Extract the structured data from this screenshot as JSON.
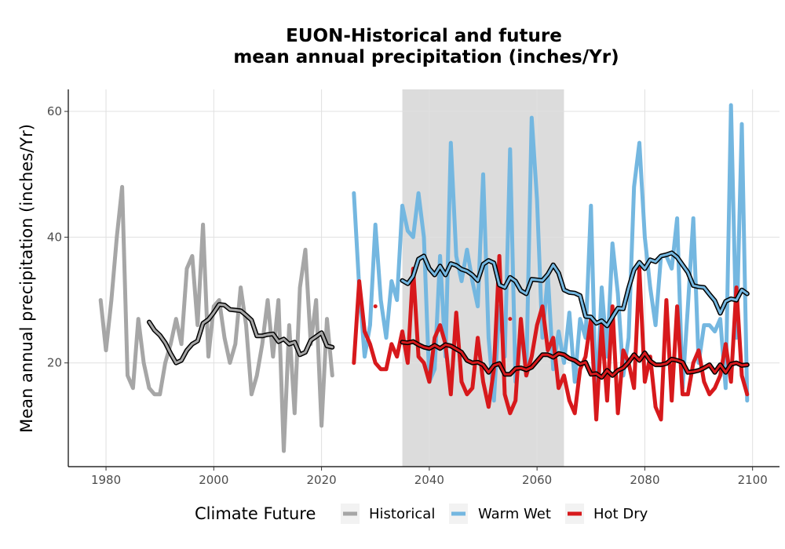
{
  "chart_data": {
    "type": "line",
    "title_line1": "EUON-Historical and future",
    "title_line2": "mean annual precipitation (inches/Yr)",
    "xlabel": "",
    "ylabel": "Mean annual precipitation (inches/Yr)",
    "xlim": [
      1973,
      2105
    ],
    "ylim": [
      3.5,
      63.5
    ],
    "x_ticks": [
      1980,
      2000,
      2020,
      2040,
      2060,
      2080,
      2100
    ],
    "y_ticks": [
      20,
      40,
      60
    ],
    "grid": true,
    "shaded_period": [
      2035,
      2065
    ],
    "legend": {
      "title": "Climate Future",
      "position": "bottom",
      "entries": [
        "Historical",
        "Warm Wet",
        "Hot Dry"
      ]
    },
    "colors": {
      "Historical": "#a6a6a6",
      "Warm Wet": "#74b7e0",
      "Hot Dry": "#d7191c",
      "rolling_outline": "#000000",
      "shade": "#dcdcdc",
      "grid": "#e0e0e0"
    },
    "series": [
      {
        "name": "Historical",
        "x": [
          1979,
          1980,
          1981,
          1982,
          1983,
          1984,
          1985,
          1986,
          1987,
          1988,
          1989,
          1990,
          1991,
          1992,
          1993,
          1994,
          1995,
          1996,
          1997,
          1998,
          1999,
          2000,
          2001,
          2002,
          2003,
          2004,
          2005,
          2006,
          2007,
          2008,
          2009,
          2010,
          2011,
          2012,
          2013,
          2014,
          2015,
          2016,
          2017,
          2018,
          2019,
          2020,
          2021,
          2022
        ],
        "values": [
          30,
          22,
          30,
          40,
          48,
          18,
          16,
          27,
          20,
          16,
          15,
          15,
          20,
          23,
          27,
          23,
          35,
          37,
          26,
          42,
          21,
          29,
          30,
          24,
          20,
          23,
          32,
          26,
          15,
          18,
          23,
          30,
          21,
          30,
          6,
          26,
          12,
          32,
          38,
          23,
          30,
          10,
          27,
          18
        ]
      },
      {
        "name": "Warm Wet",
        "x": [
          2026,
          2027,
          2028,
          2029,
          2030,
          2031,
          2032,
          2033,
          2034,
          2035,
          2036,
          2037,
          2038,
          2039,
          2040,
          2041,
          2042,
          2043,
          2044,
          2045,
          2046,
          2047,
          2048,
          2049,
          2050,
          2051,
          2052,
          2053,
          2054,
          2055,
          2056,
          2057,
          2058,
          2059,
          2060,
          2061,
          2062,
          2063,
          2064,
          2065,
          2066,
          2067,
          2068,
          2069,
          2070,
          2071,
          2072,
          2073,
          2074,
          2075,
          2076,
          2077,
          2078,
          2079,
          2080,
          2081,
          2082,
          2083,
          2084,
          2085,
          2086,
          2087,
          2088,
          2089,
          2090,
          2091,
          2092,
          2093,
          2094,
          2095,
          2096,
          2097,
          2098,
          2099
        ],
        "values": [
          47,
          32,
          21,
          26,
          42,
          30,
          24,
          33,
          30,
          45,
          41,
          40,
          47,
          40,
          17,
          19,
          37,
          21,
          55,
          37,
          33,
          38,
          33,
          29,
          50,
          24,
          14,
          29,
          21,
          54,
          17,
          26,
          18,
          59,
          46,
          24,
          34,
          19,
          25,
          20,
          28,
          17,
          27,
          24,
          45,
          13,
          32,
          21,
          39,
          31,
          18,
          24,
          48,
          55,
          40,
          32,
          26,
          37,
          37,
          35,
          43,
          16,
          29,
          43,
          20,
          26,
          26,
          25,
          27,
          16,
          61,
          24,
          58,
          14
        ]
      },
      {
        "name": "Hot Dry",
        "x": [
          2026,
          2027,
          2028,
          2029,
          2030,
          2031,
          2032,
          2033,
          2034,
          2035,
          2036,
          2037,
          2038,
          2039,
          2040,
          2041,
          2042,
          2043,
          2044,
          2045,
          2046,
          2047,
          2048,
          2049,
          2050,
          2051,
          2052,
          2053,
          2054,
          2055,
          2056,
          2057,
          2058,
          2059,
          2060,
          2061,
          2062,
          2063,
          2064,
          2065,
          2066,
          2067,
          2068,
          2069,
          2070,
          2071,
          2072,
          2073,
          2074,
          2075,
          2076,
          2077,
          2078,
          2079,
          2080,
          2081,
          2082,
          2083,
          2084,
          2085,
          2086,
          2087,
          2088,
          2089,
          2090,
          2091,
          2092,
          2093,
          2094,
          2095,
          2096,
          2097,
          2098,
          2099
        ],
        "values": [
          20,
          33,
          25,
          23,
          20,
          19,
          19,
          23,
          21,
          25,
          20,
          35,
          21,
          20,
          17,
          24,
          26,
          23,
          15,
          28,
          17,
          15,
          16,
          24,
          17,
          13,
          19,
          37,
          15,
          12,
          14,
          27,
          18,
          21,
          26,
          29,
          22,
          24,
          16,
          18,
          14,
          12,
          19,
          21,
          27,
          11,
          26,
          14,
          29,
          12,
          22,
          20,
          16,
          35,
          17,
          21,
          13,
          11,
          30,
          14,
          29,
          15,
          15,
          20,
          22,
          17,
          15,
          16,
          18,
          23,
          17,
          32,
          18,
          15
        ],
        "markers": [
          [
            2030,
            29
          ],
          [
            2052,
            36
          ],
          [
            2055,
            27
          ]
        ]
      },
      {
        "name": "Historical rolling mean",
        "x": [
          1988,
          1989,
          1990,
          1991,
          1992,
          1993,
          1994,
          1995,
          1996,
          1997,
          1998,
          1999,
          2000,
          2001,
          2002,
          2003,
          2004,
          2005,
          2006,
          2007,
          2008,
          2009,
          2010,
          2011,
          2012,
          2013,
          2014,
          2015,
          2016,
          2017,
          2018,
          2019,
          2020,
          2021,
          2022
        ],
        "values": [
          26.5,
          25.2,
          24.4,
          23.2,
          21.5,
          20,
          20.4,
          22,
          23,
          23.5,
          26.3,
          26.9,
          28,
          29.3,
          29.2,
          28.5,
          28.4,
          28.3,
          27.6,
          26.8,
          24.3,
          24.3,
          24.5,
          24.6,
          23.4,
          23.8,
          23,
          23.3,
          21.3,
          21.7,
          23.6,
          24.2,
          24.8,
          22.7,
          22.5
        ]
      },
      {
        "name": "Warm Wet rolling mean",
        "x": [
          2035,
          2036,
          2037,
          2038,
          2039,
          2040,
          2041,
          2042,
          2043,
          2044,
          2045,
          2046,
          2047,
          2048,
          2049,
          2050,
          2051,
          2052,
          2053,
          2054,
          2055,
          2056,
          2057,
          2058,
          2059,
          2060,
          2061,
          2062,
          2063,
          2064,
          2065,
          2066,
          2067,
          2068,
          2069,
          2070,
          2071,
          2072,
          2073,
          2074,
          2075,
          2076,
          2077,
          2078,
          2079,
          2080,
          2081,
          2082,
          2083,
          2084,
          2085,
          2086,
          2087,
          2088,
          2089,
          2090,
          2091,
          2092,
          2093,
          2094,
          2095,
          2096,
          2097,
          2098,
          2099
        ],
        "values": [
          33.1,
          32.6,
          33.8,
          36.5,
          37,
          35,
          34,
          35.4,
          34,
          35.8,
          35.5,
          34.9,
          34.6,
          34,
          33.1,
          35.7,
          36.3,
          35.9,
          32.4,
          32,
          33.6,
          33,
          31.5,
          31,
          33.3,
          33.2,
          33.1,
          34.1,
          35.6,
          34.3,
          31.6,
          31.2,
          31.1,
          30.7,
          27.4,
          27.3,
          26.3,
          26.7,
          25.9,
          27.3,
          28.7,
          28.6,
          31.9,
          34.8,
          36,
          35,
          36.4,
          36.1,
          37,
          37.2,
          37.5,
          36.8,
          35.6,
          34.4,
          32.3,
          32.1,
          32,
          30.9,
          29.9,
          27.9,
          29.8,
          30.2,
          30,
          31.6,
          31
        ]
      },
      {
        "name": "Hot Dry rolling mean",
        "x": [
          2035,
          2036,
          2037,
          2038,
          2039,
          2040,
          2041,
          2042,
          2043,
          2044,
          2045,
          2046,
          2047,
          2048,
          2049,
          2050,
          2051,
          2052,
          2053,
          2054,
          2055,
          2056,
          2057,
          2058,
          2059,
          2060,
          2061,
          2062,
          2063,
          2064,
          2065,
          2066,
          2067,
          2068,
          2069,
          2070,
          2071,
          2072,
          2073,
          2074,
          2075,
          2076,
          2077,
          2078,
          2079,
          2080,
          2081,
          2082,
          2083,
          2084,
          2085,
          2086,
          2087,
          2088,
          2089,
          2090,
          2091,
          2092,
          2093,
          2094,
          2095,
          2096,
          2097,
          2098,
          2099
        ],
        "values": [
          23.3,
          23.2,
          23.4,
          22.9,
          22.5,
          22.3,
          22.8,
          22.3,
          22.9,
          22.7,
          22.2,
          21.7,
          20.4,
          20,
          20.1,
          19.7,
          18.5,
          19.6,
          19.9,
          18.2,
          18.2,
          19.1,
          19.2,
          18.9,
          19.3,
          20.3,
          21.3,
          21.3,
          20.9,
          21.5,
          21.3,
          20.7,
          20.4,
          19.8,
          20.1,
          18.2,
          18.3,
          17.7,
          18.8,
          18,
          18.8,
          19.2,
          20.1,
          21.3,
          20.4,
          21.6,
          20.3,
          19.7,
          19.7,
          19.9,
          20.6,
          20.4,
          20.1,
          18.5,
          18.6,
          18.8,
          19.2,
          19.7,
          18.5,
          19.7,
          18.5,
          19.8,
          20,
          19.6,
          19.7
        ]
      }
    ]
  }
}
